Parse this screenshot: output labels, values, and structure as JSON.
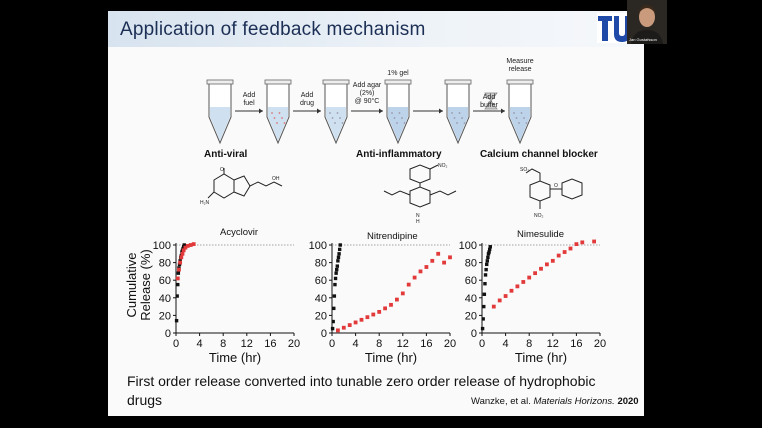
{
  "slide": {
    "title": "Application of feedback mechanism",
    "logo_text": "TU",
    "webcam_name": "Jan Gustafsson",
    "process_steps": [
      "Add fuel",
      "Add drug",
      "Add agar (2%) @ 90°C",
      "1% gel",
      "Add buffer",
      "Measure release"
    ],
    "drug_classes": [
      "Anti-viral",
      "Anti-inflammatory",
      "Calcium channel blocker"
    ],
    "drug_names": [
      "Acyclovir",
      "Nitrendipine",
      "Nimesulide"
    ],
    "summary": "First order release converted into tunable zero order release of hydrophobic drugs",
    "citation_authors": "Wanzke, et al.",
    "citation_journal": "Materials Horizons.",
    "citation_year": "2020"
  },
  "colors": {
    "title_bg": "#d7e3ef",
    "title_text": "#1c2f55",
    "logo": "#1f4aa8",
    "red_series": "#e23a3a",
    "black_series": "#111111"
  },
  "chart_data": [
    {
      "type": "scatter",
      "title": "Acyclovir",
      "xlabel": "Time (hr)",
      "ylabel": "Cumulative Release (%)",
      "xlim": [
        0,
        20
      ],
      "ylim": [
        0,
        100
      ],
      "xticks": [
        0,
        4,
        8,
        12,
        16,
        20
      ],
      "yticks": [
        0,
        20,
        40,
        60,
        80,
        100
      ],
      "reference_line": 100,
      "series": [
        {
          "color": "#111111",
          "x": [
            0.1,
            0.2,
            0.3,
            0.4,
            0.5,
            0.6,
            0.7,
            0.8,
            0.9,
            1.0,
            1.1,
            1.2,
            1.3,
            1.4
          ],
          "y": [
            14,
            42,
            55,
            68,
            74,
            78,
            82,
            86,
            88,
            92,
            94,
            96,
            98,
            100
          ]
        },
        {
          "color": "#e23a3a",
          "x": [
            0.3,
            0.5,
            0.7,
            0.9,
            1.1,
            1.3,
            1.6,
            2.0,
            2.5,
            3.0
          ],
          "y": [
            62,
            72,
            80,
            86,
            90,
            94,
            97,
            99,
            100,
            101
          ]
        }
      ]
    },
    {
      "type": "scatter",
      "title": "Nitrendipine",
      "xlabel": "Time (hr)",
      "xlim": [
        0,
        20
      ],
      "ylim": [
        0,
        100
      ],
      "xticks": [
        0,
        4,
        8,
        12,
        16,
        20
      ],
      "yticks": [
        0,
        20,
        40,
        60,
        80,
        100
      ],
      "reference_line": 100,
      "series": [
        {
          "color": "#111111",
          "x": [
            0.1,
            0.2,
            0.3,
            0.4,
            0.5,
            0.6,
            0.7,
            0.8,
            0.9,
            1.0,
            1.1,
            1.2,
            1.3,
            1.4
          ],
          "y": [
            5,
            13,
            28,
            42,
            55,
            62,
            68,
            72,
            76,
            82,
            86,
            90,
            95,
            100
          ]
        },
        {
          "color": "#e23a3a",
          "x": [
            1,
            2,
            3,
            4,
            5,
            6,
            7,
            8,
            9,
            10,
            11,
            12,
            13,
            14,
            15,
            16,
            17,
            18,
            19,
            20
          ],
          "y": [
            3,
            6,
            9,
            12,
            15,
            18,
            21,
            24,
            28,
            32,
            38,
            45,
            55,
            63,
            70,
            75,
            82,
            90,
            80,
            86
          ]
        }
      ]
    },
    {
      "type": "scatter",
      "title": "Nimesulide",
      "xlabel": "Time (hr)",
      "xlim": [
        0,
        20
      ],
      "ylim": [
        0,
        100
      ],
      "xticks": [
        0,
        4,
        8,
        12,
        16,
        20
      ],
      "yticks": [
        0,
        20,
        40,
        60,
        80,
        100
      ],
      "reference_line": 100,
      "series": [
        {
          "color": "#111111",
          "x": [
            0.1,
            0.2,
            0.3,
            0.4,
            0.5,
            0.6,
            0.7,
            0.8,
            0.9,
            1.0,
            1.1,
            1.2,
            1.3,
            1.4
          ],
          "y": [
            5,
            16,
            30,
            44,
            56,
            66,
            72,
            78,
            82,
            86,
            90,
            92,
            95,
            98
          ]
        },
        {
          "color": "#e23a3a",
          "x": [
            2,
            3,
            4,
            5,
            6,
            7,
            8,
            9,
            10,
            11,
            12,
            13,
            14,
            15,
            16,
            17,
            19
          ],
          "y": [
            30,
            37,
            42,
            48,
            53,
            58,
            63,
            68,
            73,
            78,
            82,
            88,
            92,
            96,
            101,
            103,
            104
          ]
        }
      ]
    }
  ]
}
